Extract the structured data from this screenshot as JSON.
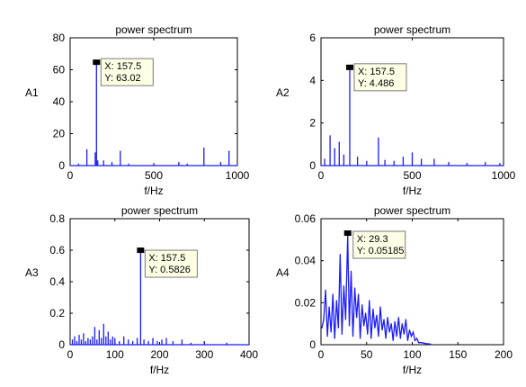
{
  "colors": {
    "series": "#1a1aff",
    "axis": "#000000",
    "datatip_bg": "#ffffe6",
    "datatip_border": "#7a7a7a",
    "marker": "#000000"
  },
  "chart_data": [
    {
      "type": "line",
      "title": "power spectrum",
      "xlabel": "f/Hz",
      "ylabel": "A1",
      "xlim": [
        0,
        1000
      ],
      "ylim": [
        0,
        80
      ],
      "xticks": [
        "0",
        "500",
        "1000"
      ],
      "yticks": [
        "0",
        "20",
        "40",
        "60",
        "80"
      ],
      "grid": false,
      "series": [
        {
          "x": [
            50,
            100,
            150,
            157.5,
            165,
            200,
            250,
            300,
            350,
            500,
            650,
            700,
            800,
            900,
            950
          ],
          "y": [
            1,
            10,
            8,
            63.02,
            3,
            3,
            2,
            9,
            1,
            1,
            2,
            1,
            11,
            2,
            9
          ]
        }
      ],
      "datatip": {
        "x_text": "X: 157.5",
        "y_text": "Y: 63.02",
        "x": 157.5,
        "y": 63.02
      }
    },
    {
      "type": "line",
      "title": "power spectrum",
      "xlabel": "f/Hz",
      "ylabel": "A2",
      "xlim": [
        0,
        1000
      ],
      "ylim": [
        0,
        6
      ],
      "xticks": [
        "0",
        "500",
        "1000"
      ],
      "yticks": [
        "0",
        "2",
        "4",
        "6"
      ],
      "grid": false,
      "series": [
        {
          "x": [
            20,
            50,
            75,
            100,
            125,
            157.5,
            200,
            250,
            315,
            350,
            400,
            450,
            500,
            550,
            620,
            700,
            800,
            900,
            980
          ],
          "y": [
            0.3,
            1.4,
            0.8,
            1.1,
            0.5,
            4.486,
            0.4,
            0.2,
            1.3,
            0.25,
            0.2,
            0.4,
            0.6,
            0.3,
            0.3,
            0.15,
            0.1,
            0.15,
            0.1
          ]
        }
      ],
      "datatip": {
        "x_text": "X: 157.5",
        "y_text": "Y: 4.486",
        "x": 157.5,
        "y": 4.486
      }
    },
    {
      "type": "line",
      "title": "power spectrum",
      "xlabel": "f/Hz",
      "ylabel": "A3",
      "xlim": [
        0,
        400
      ],
      "ylim": [
        0,
        0.8
      ],
      "xticks": [
        "0",
        "100",
        "200",
        "300",
        "400"
      ],
      "yticks": [
        "0",
        "0.2",
        "0.4",
        "0.6",
        "0.8"
      ],
      "grid": false,
      "series": [
        {
          "x": [
            5,
            10,
            15,
            20,
            25,
            30,
            35,
            40,
            45,
            50,
            55,
            60,
            65,
            70,
            75,
            80,
            85,
            90,
            95,
            100,
            110,
            120,
            130,
            140,
            150,
            157.5,
            165,
            175,
            185,
            195,
            205,
            215,
            230,
            250,
            270,
            300,
            350
          ],
          "y": [
            0.03,
            0.05,
            0.02,
            0.06,
            0.03,
            0.07,
            0.02,
            0.04,
            0.03,
            0.05,
            0.11,
            0.03,
            0.09,
            0.04,
            0.13,
            0.05,
            0.08,
            0.03,
            0.05,
            0.04,
            0.02,
            0.05,
            0.03,
            0.02,
            0.04,
            0.5826,
            0.03,
            0.02,
            0.04,
            0.02,
            0.03,
            0.04,
            0.02,
            0.03,
            0.01,
            0.02,
            0.01
          ]
        }
      ],
      "datatip": {
        "x_text": "X: 157.5",
        "y_text": "Y: 0.5826",
        "x": 157.5,
        "y": 0.5826
      }
    },
    {
      "type": "line",
      "title": "power spectrum",
      "xlabel": "f/Hz",
      "ylabel": "A4",
      "xlim": [
        0,
        200
      ],
      "ylim": [
        0,
        0.06
      ],
      "xticks": [
        "0",
        "50",
        "100",
        "150",
        "200"
      ],
      "yticks": [
        "0",
        "0.02",
        "0.04",
        "0.06"
      ],
      "grid": false,
      "series": [
        {
          "x": [
            1,
            3,
            5,
            7,
            9,
            11,
            13,
            15,
            17,
            19,
            21,
            23,
            25,
            27,
            29.3,
            31,
            33,
            35,
            37,
            39,
            41,
            43,
            45,
            47,
            49,
            51,
            53,
            55,
            57,
            59,
            61,
            63,
            65,
            67,
            69,
            71,
            73,
            75,
            77,
            79,
            81,
            83,
            85,
            87,
            89,
            91,
            93,
            95,
            97,
            99,
            101,
            103,
            105,
            107,
            110,
            115,
            120
          ],
          "y": [
            0.008,
            0.012,
            0.026,
            0.004,
            0.018,
            0.006,
            0.024,
            0.003,
            0.021,
            0.008,
            0.043,
            0.005,
            0.028,
            0.012,
            0.05185,
            0.009,
            0.035,
            0.004,
            0.027,
            0.013,
            0.024,
            0.003,
            0.019,
            0.009,
            0.015,
            0.005,
            0.021,
            0.003,
            0.017,
            0.008,
            0.014,
            0.004,
            0.018,
            0.007,
            0.012,
            0.003,
            0.013,
            0.006,
            0.01,
            0.002,
            0.011,
            0.004,
            0.013,
            0.003,
            0.01,
            0.005,
            0.012,
            0.002,
            0.007,
            0.004,
            0.006,
            0.002,
            0.003,
            0.001,
            0.001,
            0.0005,
            0.0003
          ]
        }
      ],
      "datatip": {
        "x_text": "X: 29.3",
        "y_text": "Y: 0.05185",
        "x": 29.3,
        "y": 0.05185
      }
    }
  ]
}
